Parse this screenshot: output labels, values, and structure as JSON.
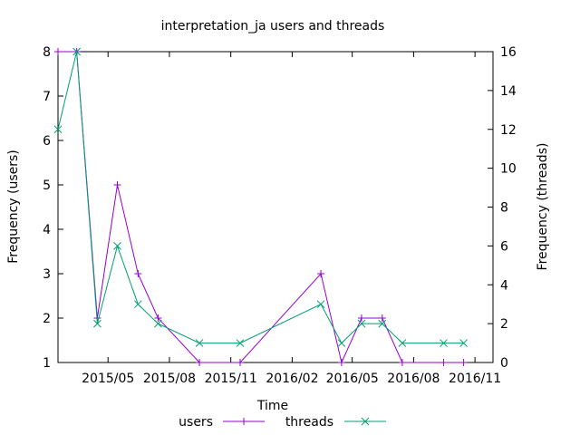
{
  "chart_data": {
    "type": "line",
    "title": "interpretation_ja users and threads",
    "xlabel": "Time",
    "ylabel": "Frequency (users)",
    "y2label": "Frequency (threads)",
    "x_ticks": [
      "2015/05",
      "2015/08",
      "2015/11",
      "2016/02",
      "2016/05",
      "2016/08",
      "2016/11"
    ],
    "y_ticks": [
      1,
      2,
      3,
      4,
      5,
      6,
      7,
      8
    ],
    "y2_ticks": [
      0,
      2,
      4,
      6,
      8,
      10,
      12,
      14,
      16
    ],
    "xlim": [
      "2015-02-15",
      "2016-11-28"
    ],
    "ylim": [
      1,
      8
    ],
    "y2lim": [
      0,
      16
    ],
    "grid": false,
    "legend_position": "bottom-center",
    "series": [
      {
        "name": "users",
        "axis": "left",
        "color": "#9400d3",
        "marker": "plus",
        "x": [
          "2015-02-15",
          "2015-03-15",
          "2015-04-15",
          "2015-05-15",
          "2015-06-15",
          "2015-07-15",
          "2015-09-15",
          "2015-11-15",
          "2016-03-15",
          "2016-04-15",
          "2016-05-15",
          "2016-06-15",
          "2016-07-15",
          "2016-09-15",
          "2016-10-15"
        ],
        "values": [
          8,
          8,
          2,
          5,
          3,
          2,
          1,
          1,
          3,
          1,
          2,
          2,
          1,
          1,
          1
        ]
      },
      {
        "name": "threads",
        "axis": "right",
        "color": "#009e73",
        "marker": "cross",
        "x": [
          "2015-02-15",
          "2015-03-15",
          "2015-04-15",
          "2015-05-15",
          "2015-06-15",
          "2015-07-15",
          "2015-09-15",
          "2015-11-15",
          "2016-03-15",
          "2016-04-15",
          "2016-05-15",
          "2016-06-15",
          "2016-07-15",
          "2016-09-15",
          "2016-10-15"
        ],
        "values": [
          12,
          16,
          2,
          6,
          3,
          2,
          1,
          1,
          3,
          1,
          2,
          2,
          1,
          1,
          1
        ]
      }
    ]
  }
}
